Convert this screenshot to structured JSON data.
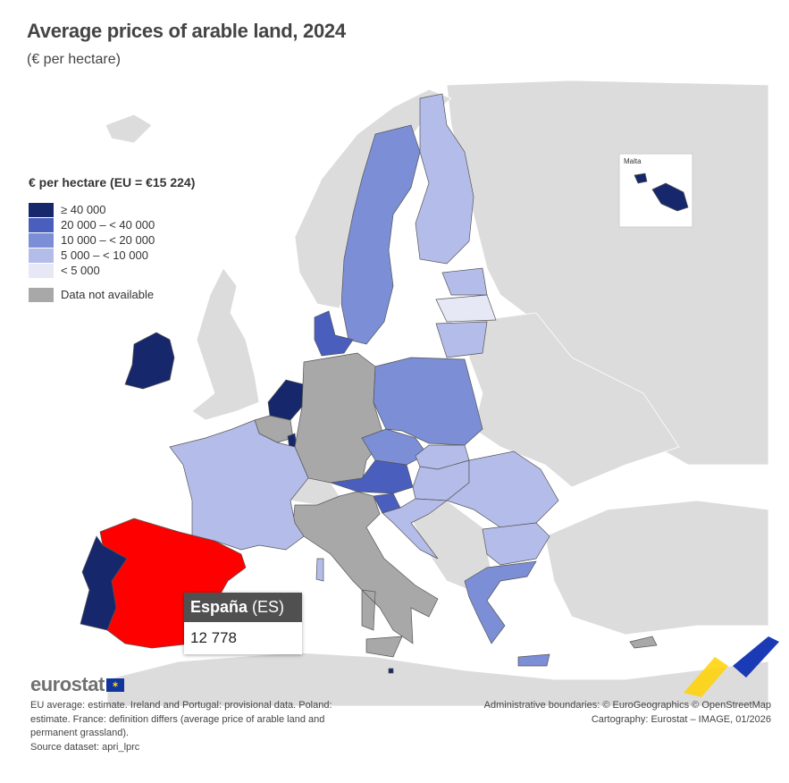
{
  "title": "Average prices of arable land, 2024",
  "subtitle": "(€ per hectare)",
  "legend": {
    "title": "€ per hectare (EU = €15 224)",
    "classes": [
      {
        "label": "≥ 40 000",
        "color": "#17276b"
      },
      {
        "label": "20 000 – < 40 000",
        "color": "#4a5ebe"
      },
      {
        "label": "10 000 – < 20 000",
        "color": "#7b8ed6"
      },
      {
        "label": "5 000 – < 10 000",
        "color": "#b4bdea"
      },
      {
        "label": "< 5 000",
        "color": "#e6e8f6"
      }
    ],
    "na": {
      "label": "Data not available",
      "color": "#a8a8a8"
    }
  },
  "colors": {
    "non_eu": "#dcdcdc",
    "highlight": "#ff0000",
    "border": "#555555"
  },
  "inset": {
    "label": "Malta"
  },
  "tooltip": {
    "country": "España",
    "code": "(ES)",
    "value": "12 778"
  },
  "countries": {
    "IE": 0,
    "NL": 0,
    "LU": 0,
    "PT": 0,
    "MT": 0,
    "DK": 1,
    "AT": 1,
    "SI": 1,
    "SE": 2,
    "PL": 2,
    "CZ": 2,
    "GR": 2,
    "ES": 2,
    "FI": 3,
    "FR": 3,
    "EE": 3,
    "LT": 3,
    "SK": 3,
    "HU": 3,
    "RO": 3,
    "BG": 3,
    "HR": 3,
    "LV": 4,
    "DE": "na",
    "BE": "na",
    "IT": "na",
    "CY": "na"
  },
  "logo": "eurostat",
  "notes": [
    "EU average: estimate. Ireland and Portugal: provisional data. Poland: estimate. France: definition differs (average price of arable land and permanent grassland).",
    "Source dataset: apri_lprc"
  ],
  "credits": [
    "Administrative boundaries: © EuroGeographics © OpenStreetMap",
    "Cartography: Eurostat – IMAGE, 01/2026"
  ]
}
